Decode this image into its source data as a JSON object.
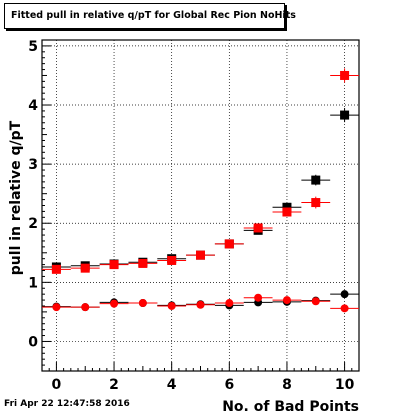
{
  "chart_data": {
    "type": "scatter",
    "title": "Fitted pull in relative q/pT  for Global Rec Pion NoHits",
    "xlabel": "No. of Bad Points",
    "ylabel": "pull in relative q/pT",
    "xlim": [
      -0.5,
      10.5
    ],
    "ylim": [
      -0.5,
      5.1
    ],
    "x_ticks": [
      0,
      2,
      4,
      6,
      8,
      10
    ],
    "y_ticks": [
      0,
      1,
      2,
      3,
      4,
      5
    ],
    "grid": true,
    "series": [
      {
        "color": "#000000",
        "marker": "square",
        "x": [
          0,
          1,
          2,
          3,
          4,
          5,
          6,
          7,
          8,
          9,
          10
        ],
        "y": [
          1.26,
          1.28,
          1.31,
          1.34,
          1.4,
          1.46,
          1.65,
          1.88,
          2.27,
          2.73,
          3.83
        ],
        "yerr": [
          0.03,
          0.03,
          0.03,
          0.03,
          0.04,
          0.04,
          0.04,
          0.05,
          0.06,
          0.09,
          0.12
        ]
      },
      {
        "color": "#ff0000",
        "marker": "square",
        "x": [
          0,
          1,
          2,
          3,
          4,
          5,
          6,
          7,
          8,
          9,
          10
        ],
        "y": [
          1.22,
          1.24,
          1.3,
          1.32,
          1.37,
          1.46,
          1.65,
          1.92,
          2.19,
          2.35,
          4.5
        ],
        "yerr": [
          0.03,
          0.03,
          0.03,
          0.03,
          0.04,
          0.04,
          0.04,
          0.05,
          0.06,
          0.1,
          0.12
        ]
      },
      {
        "color": "#000000",
        "marker": "circle",
        "x": [
          0,
          1,
          2,
          3,
          4,
          5,
          6,
          7,
          8,
          9,
          10
        ],
        "y": [
          0.59,
          0.58,
          0.66,
          0.65,
          0.61,
          0.63,
          0.61,
          0.66,
          0.67,
          0.69,
          0.8
        ],
        "yerr": [
          0.02,
          0.02,
          0.02,
          0.02,
          0.02,
          0.02,
          0.02,
          0.02,
          0.03,
          0.03,
          0.04
        ]
      },
      {
        "color": "#ff0000",
        "marker": "circle",
        "x": [
          0,
          1,
          2,
          3,
          4,
          5,
          6,
          7,
          8,
          9,
          10
        ],
        "y": [
          0.58,
          0.58,
          0.64,
          0.65,
          0.6,
          0.62,
          0.65,
          0.74,
          0.7,
          0.68,
          0.56
        ],
        "yerr": [
          0.02,
          0.02,
          0.02,
          0.02,
          0.02,
          0.02,
          0.02,
          0.02,
          0.03,
          0.03,
          0.04
        ]
      }
    ]
  },
  "footer": {
    "timestamp": "Fri Apr 22 12:47:58 2016"
  }
}
